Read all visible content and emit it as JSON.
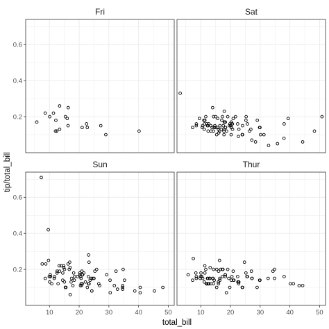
{
  "chart_data": {
    "type": "scatter",
    "facet_by": "day",
    "facets": [
      {
        "label": "Fri",
        "points": [
          [
            28.97,
            0.1
          ],
          [
            22.49,
            0.16
          ],
          [
            5.75,
            0.17
          ],
          [
            16.32,
            0.25
          ],
          [
            22.75,
            0.14
          ],
          [
            40.17,
            0.12
          ],
          [
            27.28,
            0.15
          ],
          [
            12.03,
            0.12
          ],
          [
            21.01,
            0.14
          ],
          [
            12.46,
            0.12
          ],
          [
            11.35,
            0.22
          ],
          [
            15.38,
            0.2
          ],
          [
            12.16,
            0.18
          ],
          [
            13.42,
            0.26
          ],
          [
            8.58,
            0.22
          ],
          [
            15.98,
            0.19
          ],
          [
            13.42,
            0.13
          ],
          [
            16.27,
            0.15
          ],
          [
            10.09,
            0.2
          ]
        ]
      },
      {
        "label": "Sat",
        "points": [
          [
            20.65,
            0.16
          ],
          [
            17.92,
            0.23
          ],
          [
            20.29,
            0.14
          ],
          [
            15.77,
            0.14
          ],
          [
            39.42,
            0.19
          ],
          [
            19.82,
            0.16
          ],
          [
            17.81,
            0.13
          ],
          [
            13.37,
            0.15
          ],
          [
            12.69,
            0.16
          ],
          [
            21.7,
            0.2
          ],
          [
            19.65,
            0.15
          ],
          [
            9.55,
            0.19
          ],
          [
            18.35,
            0.14
          ],
          [
            15.06,
            0.2
          ],
          [
            20.69,
            0.13
          ],
          [
            17.78,
            0.12
          ],
          [
            24.06,
            0.15
          ],
          [
            16.31,
            0.12
          ],
          [
            16.93,
            0.13
          ],
          [
            18.69,
            0.12
          ],
          [
            31.27,
            0.1
          ],
          [
            16.04,
            0.11
          ],
          [
            38.01,
            0.08
          ],
          [
            26.41,
            0.12
          ],
          [
            11.24,
            0.16
          ],
          [
            48.27,
            0.12
          ],
          [
            20.29,
            0.17
          ],
          [
            13.81,
            0.14
          ],
          [
            11.02,
            0.18
          ],
          [
            18.29,
            0.14
          ],
          [
            17.59,
            0.15
          ],
          [
            20.08,
            0.15
          ],
          [
            16.45,
            0.15
          ],
          [
            3.07,
            0.33
          ],
          [
            20.23,
            0.1
          ],
          [
            15.01,
            0.14
          ],
          [
            12.02,
            0.16
          ],
          [
            17.07,
            0.18
          ],
          [
            26.86,
            0.13
          ],
          [
            25.28,
            0.2
          ],
          [
            14.73,
            0.15
          ],
          [
            10.51,
            0.14
          ],
          [
            17.92,
            0.17
          ],
          [
            44.3,
            0.06
          ],
          [
            22.42,
            0.16
          ],
          [
            20.92,
            0.19
          ],
          [
            15.36,
            0.1
          ],
          [
            20.49,
            0.16
          ],
          [
            25.21,
            0.18
          ],
          [
            18.24,
            0.17
          ],
          [
            14.31,
            0.2
          ],
          [
            14.0,
            0.25
          ],
          [
            7.25,
            0.14
          ],
          [
            38.07,
            0.16
          ],
          [
            23.95,
            0.1
          ],
          [
            25.71,
            0.16
          ],
          [
            17.31,
            0.2
          ],
          [
            29.93,
            0.14
          ],
          [
            10.65,
            0.15
          ],
          [
            12.43,
            0.15
          ],
          [
            24.08,
            0.1
          ],
          [
            11.69,
            0.2
          ],
          [
            13.42,
            0.12
          ],
          [
            14.26,
            0.12
          ],
          [
            15.95,
            0.13
          ],
          [
            12.48,
            0.12
          ],
          [
            29.8,
            0.14
          ],
          [
            8.52,
            0.16
          ],
          [
            14.52,
            0.14
          ],
          [
            11.38,
            0.18
          ],
          [
            22.82,
            0.13
          ],
          [
            19.08,
            0.2
          ],
          [
            20.27,
            0.14
          ],
          [
            11.17,
            0.13
          ],
          [
            12.26,
            0.15
          ],
          [
            18.26,
            0.17
          ],
          [
            8.51,
            0.15
          ],
          [
            50.81,
            0.2
          ],
          [
            15.69,
            0.19
          ],
          [
            32.83,
            0.04
          ],
          [
            35.83,
            0.05
          ],
          [
            29.03,
            0.18
          ],
          [
            27.18,
            0.07
          ],
          [
            22.67,
            0.09
          ],
          [
            17.82,
            0.1
          ],
          [
            28.44,
            0.06
          ],
          [
            30.14,
            0.1
          ]
        ]
      },
      {
        "label": "Sun",
        "points": [
          [
            16.99,
            0.06
          ],
          [
            10.34,
            0.16
          ],
          [
            21.01,
            0.17
          ],
          [
            23.68,
            0.14
          ],
          [
            24.59,
            0.15
          ],
          [
            25.29,
            0.19
          ],
          [
            8.77,
            0.23
          ],
          [
            26.88,
            0.11
          ],
          [
            15.04,
            0.13
          ],
          [
            14.78,
            0.22
          ],
          [
            10.27,
            0.17
          ],
          [
            35.26,
            0.14
          ],
          [
            15.42,
            0.1
          ],
          [
            18.43,
            0.16
          ],
          [
            14.83,
            0.21
          ],
          [
            21.58,
            0.18
          ],
          [
            10.33,
            0.16
          ],
          [
            16.29,
            0.23
          ],
          [
            16.97,
            0.21
          ],
          [
            17.46,
            0.15
          ],
          [
            20.69,
            0.12
          ],
          [
            24.06,
            0.15
          ],
          [
            12.9,
            0.12
          ],
          [
            22.76,
            0.1
          ],
          [
            21.16,
            0.17
          ],
          [
            20.65,
            0.15
          ],
          [
            18.35,
            0.14
          ],
          [
            15.06,
            0.2
          ],
          [
            20.23,
            0.18
          ],
          [
            48.17,
            0.1
          ],
          [
            25.0,
            0.15
          ],
          [
            12.54,
            0.18
          ],
          [
            9.94,
            0.16
          ],
          [
            13.94,
            0.22
          ],
          [
            11.7,
            0.16
          ],
          [
            14.48,
            0.18
          ],
          [
            7.56,
            0.23
          ],
          [
            13.39,
            0.19
          ],
          [
            20.76,
            0.11
          ],
          [
            29.27,
            0.17
          ],
          [
            8.58,
            0.15
          ],
          [
            20.45,
            0.11
          ],
          [
            13.28,
            0.22
          ],
          [
            22.12,
            0.13
          ],
          [
            24.27,
            0.08
          ],
          [
            34.81,
            0.2
          ],
          [
            23.33,
            0.12
          ],
          [
            30.46,
            0.07
          ],
          [
            18.15,
            0.18
          ],
          [
            23.1,
            0.16
          ],
          [
            11.61,
            0.15
          ],
          [
            10.77,
            0.12
          ],
          [
            15.53,
            0.1
          ],
          [
            10.07,
            0.13
          ],
          [
            12.6,
            0.19
          ],
          [
            32.4,
            0.19
          ],
          [
            34.65,
            0.11
          ],
          [
            20.92,
            0.19
          ],
          [
            15.36,
            0.1
          ],
          [
            20.49,
            0.16
          ],
          [
            26.59,
            0.12
          ],
          [
            38.73,
            0.08
          ],
          [
            24.27,
            0.08
          ],
          [
            21.07,
            0.12
          ],
          [
            23.17,
            0.28
          ],
          [
            40.55,
            0.07
          ],
          [
            20.29,
            0.17
          ],
          [
            17.29,
            0.13
          ],
          [
            19.44,
            0.16
          ],
          [
            16.66,
            0.2
          ],
          [
            25.89,
            0.2
          ],
          [
            7.25,
            0.71
          ],
          [
            31.85,
            0.11
          ],
          [
            16.82,
            0.24
          ],
          [
            32.9,
            0.09
          ],
          [
            17.89,
            0.11
          ],
          [
            14.48,
            0.14
          ],
          [
            9.6,
            0.42
          ],
          [
            34.63,
            0.1
          ],
          [
            34.65,
            0.09
          ],
          [
            23.33,
            0.24
          ],
          [
            45.35,
            0.08
          ],
          [
            23.17,
            0.12
          ],
          [
            40.55,
            0.1
          ],
          [
            9.68,
            0.25
          ],
          [
            30.4,
            0.14
          ]
        ]
      },
      {
        "label": "Thur",
        "points": [
          [
            27.2,
            0.15
          ],
          [
            22.76,
            0.13
          ],
          [
            17.29,
            0.16
          ],
          [
            19.44,
            0.15
          ],
          [
            16.66,
            0.2
          ],
          [
            10.07,
            0.18
          ],
          [
            32.68,
            0.15
          ],
          [
            15.98,
            0.12
          ],
          [
            34.83,
            0.15
          ],
          [
            13.03,
            0.15
          ],
          [
            18.28,
            0.16
          ],
          [
            24.71,
            0.24
          ],
          [
            21.16,
            0.14
          ],
          [
            28.97,
            0.1
          ],
          [
            22.49,
            0.13
          ],
          [
            5.75,
            0.17
          ],
          [
            16.32,
            0.25
          ],
          [
            22.75,
            0.12
          ],
          [
            40.17,
            0.12
          ],
          [
            27.28,
            0.15
          ],
          [
            12.03,
            0.12
          ],
          [
            21.01,
            0.14
          ],
          [
            12.46,
            0.12
          ],
          [
            11.35,
            0.22
          ],
          [
            15.38,
            0.2
          ],
          [
            44.3,
            0.11
          ],
          [
            22.42,
            0.16
          ],
          [
            20.92,
            0.19
          ],
          [
            15.36,
            0.1
          ],
          [
            20.49,
            0.16
          ],
          [
            25.21,
            0.18
          ],
          [
            18.24,
            0.17
          ],
          [
            14.31,
            0.2
          ],
          [
            14.0,
            0.15
          ],
          [
            7.25,
            0.14
          ],
          [
            38.07,
            0.16
          ],
          [
            23.95,
            0.1
          ],
          [
            25.71,
            0.16
          ],
          [
            17.31,
            0.2
          ],
          [
            29.93,
            0.14
          ],
          [
            10.65,
            0.15
          ],
          [
            12.43,
            0.15
          ],
          [
            24.08,
            0.1
          ],
          [
            11.69,
            0.2
          ],
          [
            13.42,
            0.12
          ],
          [
            14.26,
            0.12
          ],
          [
            15.95,
            0.13
          ],
          [
            12.48,
            0.12
          ],
          [
            29.8,
            0.14
          ],
          [
            8.52,
            0.16
          ],
          [
            14.52,
            0.14
          ],
          [
            11.38,
            0.18
          ],
          [
            22.82,
            0.13
          ],
          [
            19.08,
            0.2
          ],
          [
            20.27,
            0.14
          ],
          [
            11.17,
            0.13
          ],
          [
            12.26,
            0.15
          ],
          [
            18.26,
            0.17
          ],
          [
            8.51,
            0.15
          ],
          [
            10.33,
            0.16
          ],
          [
            14.15,
            0.15
          ],
          [
            16.0,
            0.19
          ],
          [
            13.16,
            0.21
          ],
          [
            17.47,
            0.2
          ],
          [
            34.3,
            0.19
          ],
          [
            41.19,
            0.12
          ],
          [
            27.05,
            0.19
          ],
          [
            16.43,
            0.14
          ],
          [
            8.35,
            0.18
          ],
          [
            18.64,
            0.07
          ],
          [
            11.87,
            0.12
          ],
          [
            9.78,
            0.15
          ],
          [
            7.51,
            0.26
          ],
          [
            10.29,
            0.16
          ],
          [
            34.81,
            0.2
          ],
          [
            9.94,
            0.16
          ],
          [
            25.56,
            0.16
          ],
          [
            19.77,
            0.1
          ],
          [
            43.11,
            0.11
          ],
          [
            13.0,
            0.15
          ],
          [
            12.74,
            0.12
          ],
          [
            13.0,
            0.15
          ],
          [
            16.4,
            0.15
          ]
        ]
      }
    ],
    "xlabel": "total_bill",
    "ylabel": "tip/total_bill",
    "xlim": [
      2.0,
      52.0
    ],
    "ylim": [
      0.0,
      0.74
    ],
    "x_ticks": [
      10,
      20,
      30,
      40,
      50
    ],
    "x_tick_labels": [
      "10",
      "20",
      "30",
      "40",
      "50"
    ],
    "y_ticks": [
      0.2,
      0.4,
      0.6
    ],
    "y_tick_labels": [
      "0.2",
      "0.4",
      "0.6"
    ],
    "grid": true,
    "point_color": "#000000",
    "point_fill": "none",
    "panel_background": "#ffffff",
    "strip_background": "#ffffff",
    "grid_color": "#ebebeb",
    "panel_border_color": "#333333"
  }
}
